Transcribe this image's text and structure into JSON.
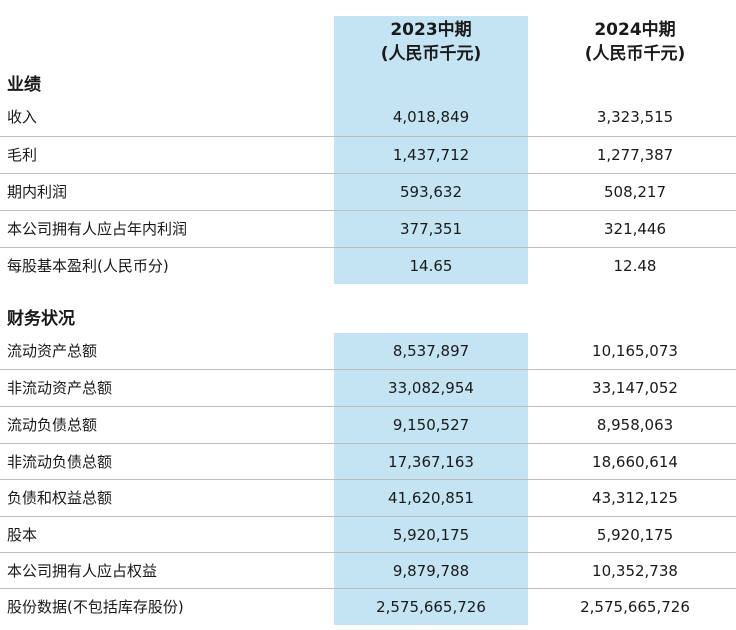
{
  "columns": {
    "col1_year": "2023中期",
    "col1_unit": "(人民币千元)",
    "col2_year": "2024中期",
    "col2_unit": "(人民币千元)"
  },
  "highlight_color": "#c4e4f3",
  "sections": [
    {
      "title": "业绩",
      "rows": [
        {
          "label": "收入",
          "v2023": "4,018,849",
          "v2024": "3,323,515"
        },
        {
          "label": "毛利",
          "v2023": "1,437,712",
          "v2024": "1,277,387"
        },
        {
          "label": "期内利润",
          "v2023": "593,632",
          "v2024": "508,217"
        },
        {
          "label": "本公司拥有人应占年内利润",
          "v2023": "377,351",
          "v2024": "321,446"
        },
        {
          "label": "每股基本盈利(人民币分)",
          "v2023": "14.65",
          "v2024": "12.48"
        }
      ]
    },
    {
      "title": "财务状况",
      "rows": [
        {
          "label": "流动资产总额",
          "v2023": "8,537,897",
          "v2024": "10,165,073"
        },
        {
          "label": "非流动资产总额",
          "v2023": "33,082,954",
          "v2024": "33,147,052"
        },
        {
          "label": "流动负债总额",
          "v2023": "9,150,527",
          "v2024": "8,958,063"
        },
        {
          "label": "非流动负债总额",
          "v2023": "17,367,163",
          "v2024": "18,660,614"
        },
        {
          "label": "负债和权益总额",
          "v2023": "41,620,851",
          "v2024": "43,312,125"
        },
        {
          "label": "股本",
          "v2023": "5,920,175",
          "v2024": "5,920,175"
        },
        {
          "label": "本公司拥有人应占权益",
          "v2023": "9,879,788",
          "v2024": "10,352,738"
        },
        {
          "label": "股份数据(不包括库存股份)",
          "v2023": "2,575,665,726",
          "v2024": "2,575,665,726"
        }
      ]
    }
  ]
}
